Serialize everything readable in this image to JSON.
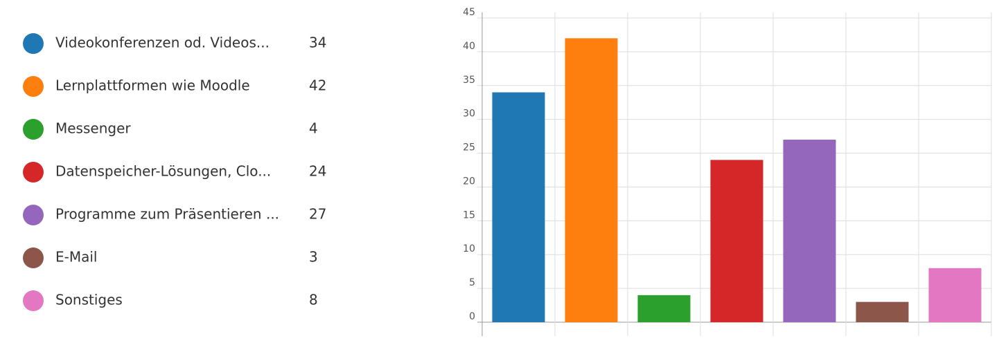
{
  "chart_data": {
    "type": "bar",
    "categories": [
      "Videokonferenzen od. Videos...",
      "Lernplattformen wie Moodle",
      "Messenger",
      "Datenspeicher-Lösungen, Clo...",
      "Programme zum Präsentieren ...",
      "E-Mail",
      "Sonstiges"
    ],
    "values": [
      34,
      42,
      4,
      24,
      27,
      3,
      8
    ],
    "colors": [
      "#1f77b4",
      "#ff7f0e",
      "#2ca02c",
      "#d62728",
      "#9467bd",
      "#8c564b",
      "#e377c2"
    ],
    "ylim": [
      0,
      45
    ],
    "yticks": [
      0,
      5,
      10,
      15,
      20,
      25,
      30,
      35,
      40,
      45
    ],
    "grid": true
  }
}
